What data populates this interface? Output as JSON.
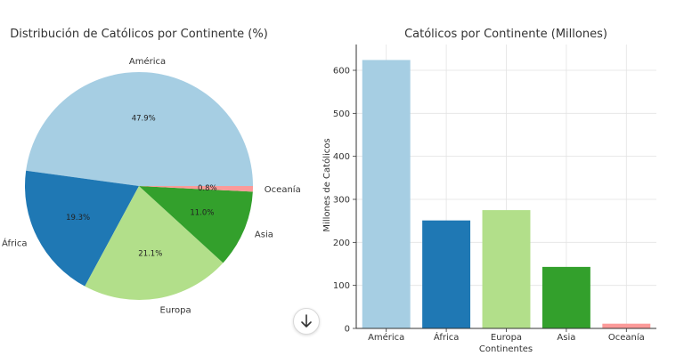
{
  "chart_data": [
    {
      "type": "pie",
      "title": "Distribución de Católicos por Continente (%)",
      "labels": [
        "América",
        "África",
        "Europa",
        "Asia",
        "Oceanía"
      ],
      "values": [
        47.9,
        19.3,
        21.1,
        11.0,
        0.8
      ],
      "value_labels": [
        "47.9%",
        "19.3%",
        "21.1%",
        "11.0%",
        "0.8%"
      ],
      "colors": [
        "#a6cee3",
        "#1f78b4",
        "#b2df8a",
        "#33a02c",
        "#fb9a99"
      ]
    },
    {
      "type": "bar",
      "title": "Católicos por Continente (Millones)",
      "categories": [
        "América",
        "África",
        "Europa",
        "Asia",
        "Oceanía"
      ],
      "values": [
        624,
        251,
        275,
        143,
        11
      ],
      "colors": [
        "#a6cee3",
        "#1f78b4",
        "#b2df8a",
        "#33a02c",
        "#fb9a99"
      ],
      "xlabel": "Continentes",
      "ylabel": "Millones de Católicos",
      "ylim": [
        0,
        660
      ],
      "yticks": [
        0,
        100,
        200,
        300,
        400,
        500,
        600
      ],
      "grid": true
    }
  ],
  "scroll_button": {
    "icon": "arrow-down-icon"
  }
}
